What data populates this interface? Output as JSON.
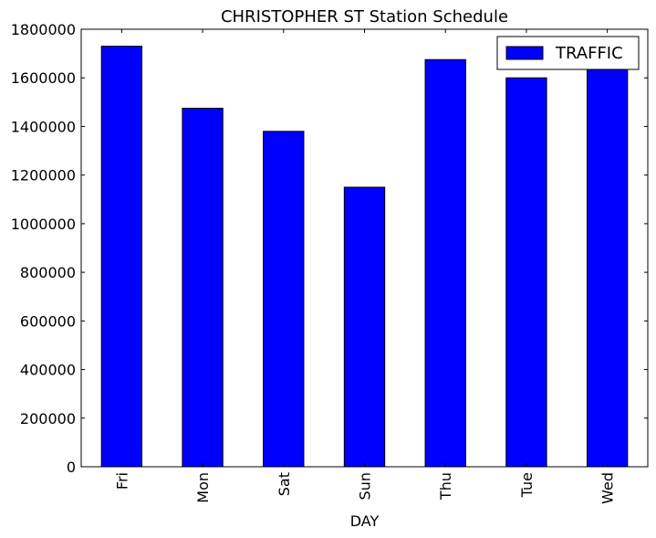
{
  "chart_data": {
    "type": "bar",
    "title": "CHRISTOPHER ST Station Schedule",
    "xlabel": "DAY",
    "ylabel": "",
    "categories": [
      "Fri",
      "Mon",
      "Sat",
      "Sun",
      "Thu",
      "Tue",
      "Wed"
    ],
    "series": [
      {
        "name": "TRAFFIC",
        "color": "#0000ff",
        "values": [
          1730000,
          1475000,
          1380000,
          1150000,
          1675000,
          1600000,
          1640000
        ]
      }
    ],
    "ylim": [
      0,
      1800000
    ],
    "yticks": [
      "0",
      "200000",
      "400000",
      "600000",
      "800000",
      "1000000",
      "1200000",
      "1400000",
      "1600000",
      "1800000"
    ],
    "grid": false,
    "legend_position": "top-right"
  }
}
